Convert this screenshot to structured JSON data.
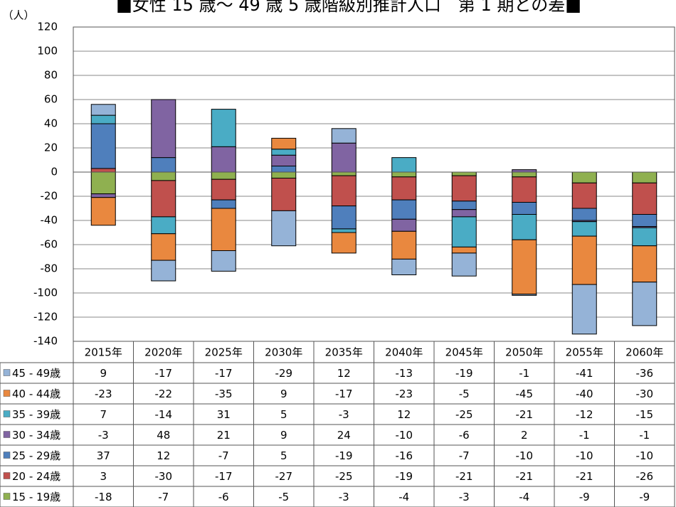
{
  "chart_data": {
    "type": "bar",
    "stacked": true,
    "title": "■女性 15 歳～ 49 歳 5 歳階級別推計人口　第 1 期との差■",
    "y_label": "（人）",
    "categories": [
      "2015年",
      "2020年",
      "2025年",
      "2030年",
      "2035年",
      "2040年",
      "2045年",
      "2050年",
      "2055年",
      "2060年"
    ],
    "series": [
      {
        "name": "45 - 49歳",
        "color": "#95b3d7",
        "values": [
          9,
          -17,
          -17,
          -29,
          12,
          -13,
          -19,
          -1,
          -41,
          -36
        ]
      },
      {
        "name": "40 - 44歳",
        "color": "#e9883f",
        "values": [
          -23,
          -22,
          -35,
          9,
          -17,
          -23,
          -5,
          -45,
          -40,
          -30
        ]
      },
      {
        "name": "35 - 39歳",
        "color": "#4aacc5",
        "values": [
          7,
          -14,
          31,
          5,
          -3,
          12,
          -25,
          -21,
          -12,
          -15
        ]
      },
      {
        "name": "30 - 34歳",
        "color": "#8064a2",
        "values": [
          -3,
          48,
          21,
          9,
          24,
          -10,
          -6,
          2,
          -1,
          -1
        ]
      },
      {
        "name": "25 - 29歳",
        "color": "#4f7fbc",
        "values": [
          37,
          12,
          -7,
          5,
          -19,
          -16,
          -7,
          -10,
          -10,
          -10
        ]
      },
      {
        "name": "20 - 24歳",
        "color": "#c0504d",
        "values": [
          3,
          -30,
          -17,
          -27,
          -25,
          -19,
          -21,
          -21,
          -21,
          -26
        ]
      },
      {
        "name": "15 - 19歳",
        "color": "#8fb050",
        "values": [
          -18,
          -7,
          -6,
          -5,
          -3,
          -4,
          -3,
          -4,
          -9,
          -9
        ]
      }
    ],
    "ylim": [
      -140,
      120
    ],
    "yticks": [
      -140,
      -120,
      -100,
      -80,
      -60,
      -40,
      -20,
      0,
      20,
      40,
      60,
      80,
      100,
      120
    ],
    "grid": true
  }
}
